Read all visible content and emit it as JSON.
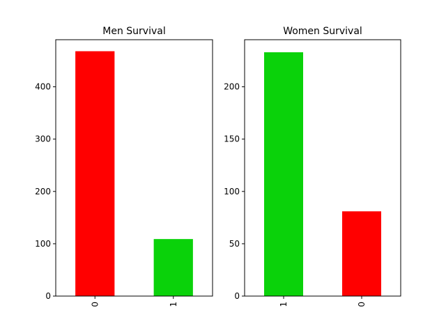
{
  "chart_data": [
    {
      "type": "bar",
      "title": "Men Survival",
      "categories": [
        "0",
        "1"
      ],
      "values": [
        468,
        109
      ],
      "colors": [
        "#ff0000",
        "#0ad20a"
      ],
      "xlabel": "",
      "ylabel": "",
      "ylim": [
        0,
        490
      ],
      "yticks": [
        0,
        100,
        200,
        300,
        400
      ],
      "grid": false,
      "legend": "none"
    },
    {
      "type": "bar",
      "title": "Women Survival",
      "categories": [
        "1",
        "0"
      ],
      "values": [
        233,
        81
      ],
      "colors": [
        "#0ad20a",
        "#ff0000"
      ],
      "xlabel": "",
      "ylabel": "",
      "ylim": [
        0,
        245
      ],
      "yticks": [
        0,
        50,
        100,
        150,
        200
      ],
      "grid": false,
      "legend": "none"
    }
  ]
}
